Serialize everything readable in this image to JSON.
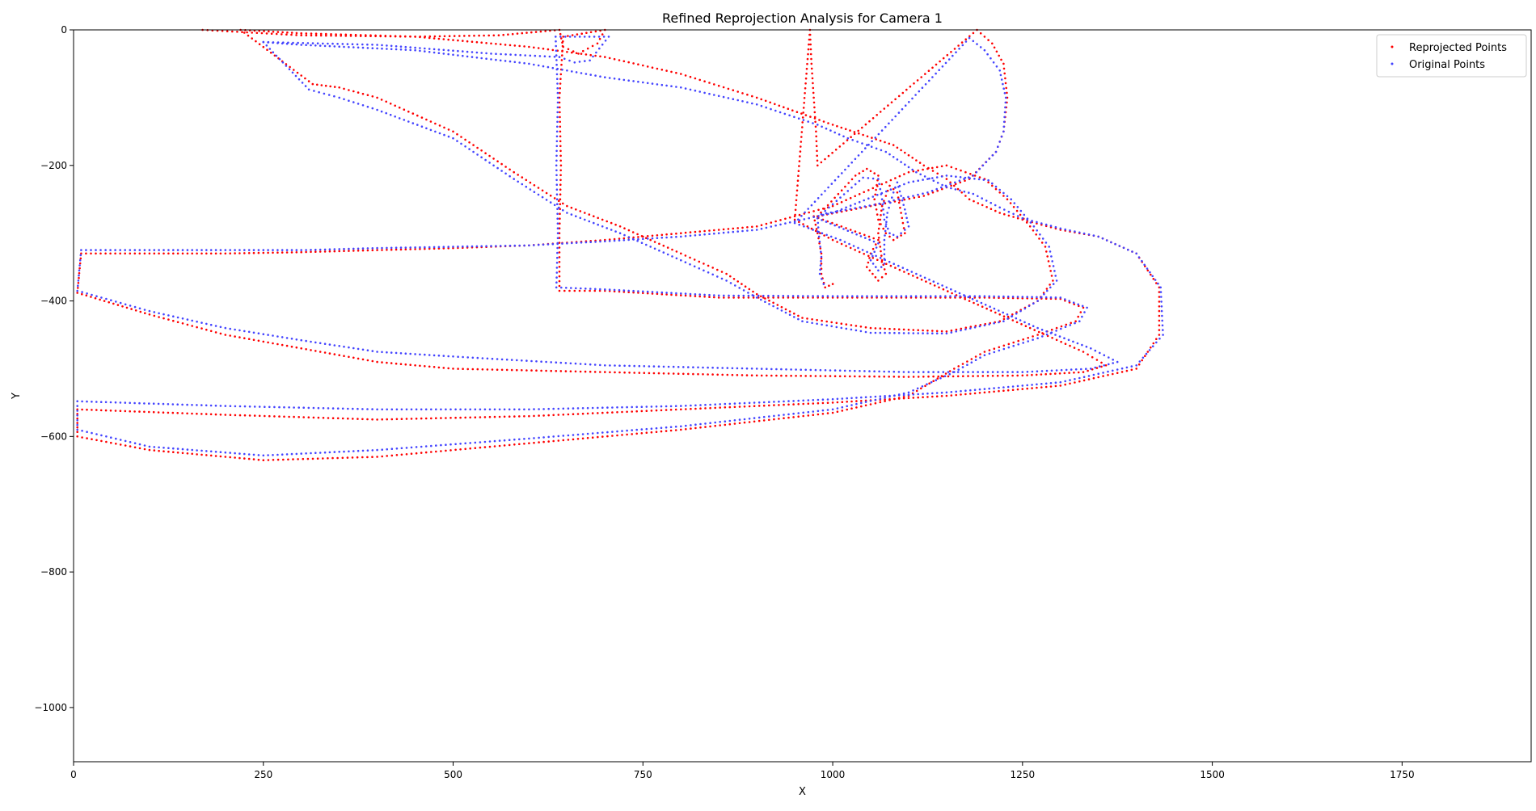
{
  "chart_data": {
    "type": "scatter",
    "title": "Refined Reprojection Analysis for Camera 1",
    "xlabel": "X",
    "ylabel": "Y",
    "xlim": [
      0,
      1920
    ],
    "ylim": [
      -1080,
      0
    ],
    "xticks": [
      0,
      250,
      500,
      750,
      1000,
      1250,
      1500,
      1750
    ],
    "yticks": [
      0,
      -200,
      -400,
      -600,
      -800,
      -1000
    ],
    "grid": false,
    "legend_position": "top-right",
    "series": [
      {
        "name": "Reprojected Points",
        "color": "#ff0000",
        "trajectory": [
          [
            170,
            0
          ],
          [
            300,
            -8
          ],
          [
            450,
            -10
          ],
          [
            560,
            -8
          ],
          [
            640,
            0
          ],
          [
            645,
            -25
          ],
          [
            665,
            -35
          ],
          [
            690,
            -20
          ],
          [
            700,
            0
          ],
          [
            645,
            -10
          ],
          [
            640,
            -100
          ],
          [
            642,
            -200
          ],
          [
            640,
            -300
          ],
          [
            640,
            -385
          ],
          [
            700,
            -385
          ],
          [
            850,
            -395
          ],
          [
            1000,
            -395
          ],
          [
            1200,
            -395
          ],
          [
            1300,
            -397
          ],
          [
            1330,
            -410
          ],
          [
            1320,
            -430
          ],
          [
            1270,
            -450
          ],
          [
            1200,
            -475
          ],
          [
            1160,
            -500
          ],
          [
            1100,
            -540
          ],
          [
            1000,
            -565
          ],
          [
            800,
            -590
          ],
          [
            600,
            -610
          ],
          [
            400,
            -630
          ],
          [
            250,
            -635
          ],
          [
            100,
            -620
          ],
          [
            5,
            -600
          ],
          [
            5,
            -560
          ],
          [
            200,
            -568
          ],
          [
            400,
            -575
          ],
          [
            600,
            -570
          ],
          [
            800,
            -560
          ],
          [
            1000,
            -550
          ],
          [
            1150,
            -540
          ],
          [
            1300,
            -525
          ],
          [
            1400,
            -500
          ],
          [
            1430,
            -450
          ],
          [
            1430,
            -380
          ],
          [
            1400,
            -330
          ],
          [
            1350,
            -305
          ],
          [
            1300,
            -295
          ],
          [
            1250,
            -280
          ],
          [
            1220,
            -270
          ],
          [
            1180,
            -250
          ],
          [
            1150,
            -220
          ],
          [
            1120,
            -200
          ],
          [
            1080,
            -170
          ],
          [
            1040,
            -155
          ],
          [
            1000,
            -140
          ],
          [
            900,
            -100
          ],
          [
            800,
            -65
          ],
          [
            700,
            -40
          ],
          [
            600,
            -25
          ],
          [
            450,
            -10
          ],
          [
            300,
            -5
          ],
          [
            220,
            0
          ],
          [
            315,
            -80
          ],
          [
            350,
            -85
          ],
          [
            400,
            -100
          ],
          [
            500,
            -150
          ],
          [
            580,
            -210
          ],
          [
            650,
            -260
          ],
          [
            720,
            -290
          ],
          [
            800,
            -330
          ],
          [
            860,
            -360
          ],
          [
            900,
            -390
          ],
          [
            960,
            -425
          ],
          [
            1050,
            -440
          ],
          [
            1150,
            -445
          ],
          [
            1220,
            -430
          ],
          [
            1270,
            -400
          ],
          [
            1290,
            -370
          ],
          [
            1280,
            -320
          ],
          [
            1260,
            -290
          ],
          [
            1230,
            -250
          ],
          [
            1200,
            -220
          ],
          [
            1150,
            -200
          ],
          [
            1100,
            -210
          ],
          [
            1000,
            -260
          ],
          [
            900,
            -290
          ],
          [
            800,
            -300
          ],
          [
            700,
            -310
          ],
          [
            600,
            -318
          ],
          [
            500,
            -322
          ],
          [
            400,
            -325
          ],
          [
            300,
            -328
          ],
          [
            200,
            -330
          ],
          [
            100,
            -330
          ],
          [
            10,
            -330
          ],
          [
            5,
            -388
          ],
          [
            100,
            -420
          ],
          [
            200,
            -450
          ],
          [
            300,
            -470
          ],
          [
            400,
            -490
          ],
          [
            500,
            -500
          ],
          [
            700,
            -505
          ],
          [
            900,
            -510
          ],
          [
            1100,
            -512
          ],
          [
            1250,
            -510
          ],
          [
            1330,
            -505
          ],
          [
            1360,
            -495
          ],
          [
            1330,
            -475
          ],
          [
            1260,
            -440
          ],
          [
            1180,
            -400
          ],
          [
            1100,
            -360
          ],
          [
            1000,
            -310
          ],
          [
            950,
            -280
          ],
          [
            970,
            0
          ],
          [
            972,
            -50
          ],
          [
            975,
            -100
          ],
          [
            978,
            -150
          ],
          [
            980,
            -200
          ],
          [
            1190,
            0
          ],
          [
            1210,
            -20
          ],
          [
            1225,
            -50
          ],
          [
            1230,
            -100
          ],
          [
            1225,
            -150
          ],
          [
            1215,
            -180
          ],
          [
            1180,
            -220
          ],
          [
            1120,
            -245
          ],
          [
            1050,
            -260
          ],
          [
            980,
            -275
          ],
          [
            1030,
            -215
          ],
          [
            1045,
            -205
          ],
          [
            1060,
            -215
          ],
          [
            1055,
            -250
          ],
          [
            1060,
            -280
          ],
          [
            1070,
            -300
          ],
          [
            1080,
            -310
          ],
          [
            1095,
            -300
          ],
          [
            1090,
            -270
          ],
          [
            1085,
            -240
          ],
          [
            1075,
            -230
          ],
          [
            1065,
            -260
          ],
          [
            1060,
            -300
          ],
          [
            1065,
            -340
          ],
          [
            1070,
            -360
          ],
          [
            1060,
            -370
          ],
          [
            1045,
            -350
          ],
          [
            1050,
            -330
          ],
          [
            1060,
            -310
          ],
          [
            975,
            -275
          ],
          [
            980,
            -300
          ],
          [
            985,
            -330
          ],
          [
            985,
            -360
          ],
          [
            990,
            -380
          ],
          [
            1000,
            -375
          ]
        ]
      },
      {
        "name": "Original Points",
        "color": "#4444ff",
        "trajectory": [
          [
            250,
            -18
          ],
          [
            400,
            -22
          ],
          [
            550,
            -35
          ],
          [
            640,
            -40
          ],
          [
            660,
            -48
          ],
          [
            680,
            -45
          ],
          [
            705,
            -10
          ],
          [
            635,
            -10
          ],
          [
            638,
            -100
          ],
          [
            636,
            -200
          ],
          [
            638,
            -300
          ],
          [
            636,
            -380
          ],
          [
            700,
            -383
          ],
          [
            850,
            -392
          ],
          [
            1000,
            -393
          ],
          [
            1200,
            -393
          ],
          [
            1300,
            -395
          ],
          [
            1335,
            -410
          ],
          [
            1325,
            -430
          ],
          [
            1270,
            -455
          ],
          [
            1200,
            -480
          ],
          [
            1160,
            -505
          ],
          [
            1100,
            -535
          ],
          [
            1000,
            -560
          ],
          [
            800,
            -585
          ],
          [
            600,
            -603
          ],
          [
            400,
            -620
          ],
          [
            250,
            -628
          ],
          [
            100,
            -615
          ],
          [
            5,
            -590
          ],
          [
            5,
            -548
          ],
          [
            200,
            -555
          ],
          [
            400,
            -560
          ],
          [
            600,
            -560
          ],
          [
            800,
            -555
          ],
          [
            1000,
            -545
          ],
          [
            1150,
            -535
          ],
          [
            1300,
            -520
          ],
          [
            1400,
            -495
          ],
          [
            1435,
            -450
          ],
          [
            1432,
            -380
          ],
          [
            1400,
            -330
          ],
          [
            1350,
            -305
          ],
          [
            1300,
            -293
          ],
          [
            1250,
            -278
          ],
          [
            1220,
            -262
          ],
          [
            1185,
            -242
          ],
          [
            1150,
            -232
          ],
          [
            1110,
            -210
          ],
          [
            1070,
            -180
          ],
          [
            1020,
            -160
          ],
          [
            980,
            -140
          ],
          [
            900,
            -110
          ],
          [
            800,
            -85
          ],
          [
            700,
            -70
          ],
          [
            600,
            -50
          ],
          [
            450,
            -30
          ],
          [
            300,
            -22
          ],
          [
            250,
            -18
          ],
          [
            310,
            -88
          ],
          [
            350,
            -100
          ],
          [
            400,
            -118
          ],
          [
            500,
            -160
          ],
          [
            580,
            -220
          ],
          [
            650,
            -270
          ],
          [
            720,
            -300
          ],
          [
            800,
            -340
          ],
          [
            860,
            -370
          ],
          [
            900,
            -395
          ],
          [
            960,
            -430
          ],
          [
            1050,
            -447
          ],
          [
            1150,
            -448
          ],
          [
            1225,
            -430
          ],
          [
            1270,
            -400
          ],
          [
            1295,
            -370
          ],
          [
            1285,
            -320
          ],
          [
            1265,
            -290
          ],
          [
            1235,
            -250
          ],
          [
            1205,
            -222
          ],
          [
            1150,
            -215
          ],
          [
            1100,
            -225
          ],
          [
            1000,
            -270
          ],
          [
            900,
            -295
          ],
          [
            800,
            -305
          ],
          [
            700,
            -312
          ],
          [
            600,
            -318
          ],
          [
            500,
            -320
          ],
          [
            400,
            -322
          ],
          [
            300,
            -325
          ],
          [
            200,
            -325
          ],
          [
            100,
            -325
          ],
          [
            10,
            -325
          ],
          [
            5,
            -385
          ],
          [
            100,
            -415
          ],
          [
            200,
            -440
          ],
          [
            300,
            -458
          ],
          [
            400,
            -475
          ],
          [
            500,
            -482
          ],
          [
            700,
            -495
          ],
          [
            900,
            -500
          ],
          [
            1100,
            -505
          ],
          [
            1250,
            -505
          ],
          [
            1340,
            -500
          ],
          [
            1375,
            -490
          ],
          [
            1340,
            -470
          ],
          [
            1270,
            -440
          ],
          [
            1190,
            -400
          ],
          [
            1110,
            -360
          ],
          [
            1010,
            -310
          ],
          [
            950,
            -285
          ],
          [
            1180,
            -12
          ],
          [
            1200,
            -30
          ],
          [
            1220,
            -60
          ],
          [
            1228,
            -100
          ],
          [
            1225,
            -150
          ],
          [
            1215,
            -180
          ],
          [
            1185,
            -215
          ],
          [
            1125,
            -240
          ],
          [
            1055,
            -258
          ],
          [
            985,
            -272
          ],
          [
            1040,
            -218
          ],
          [
            1060,
            -220
          ],
          [
            1065,
            -250
          ],
          [
            1068,
            -280
          ],
          [
            1075,
            -300
          ],
          [
            1085,
            -305
          ],
          [
            1100,
            -290
          ],
          [
            1095,
            -265
          ],
          [
            1085,
            -225
          ],
          [
            1080,
            -240
          ],
          [
            1072,
            -270
          ],
          [
            1068,
            -310
          ],
          [
            1068,
            -345
          ],
          [
            1060,
            -355
          ],
          [
            1050,
            -340
          ],
          [
            1060,
            -315
          ],
          [
            980,
            -278
          ],
          [
            982,
            -305
          ],
          [
            985,
            -335
          ],
          [
            983,
            -360
          ],
          [
            988,
            -375
          ]
        ]
      }
    ]
  }
}
